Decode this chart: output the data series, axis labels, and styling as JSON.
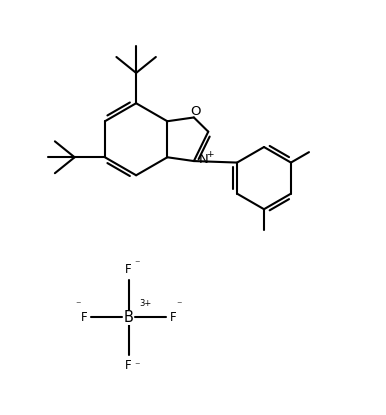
{
  "background_color": "#ffffff",
  "line_color": "#000000",
  "line_width": 1.5,
  "font_size": 8.5,
  "figsize": [
    3.86,
    4.15
  ],
  "dpi": 100,
  "xlim": [
    0,
    10
  ],
  "ylim": [
    0,
    10.8
  ]
}
